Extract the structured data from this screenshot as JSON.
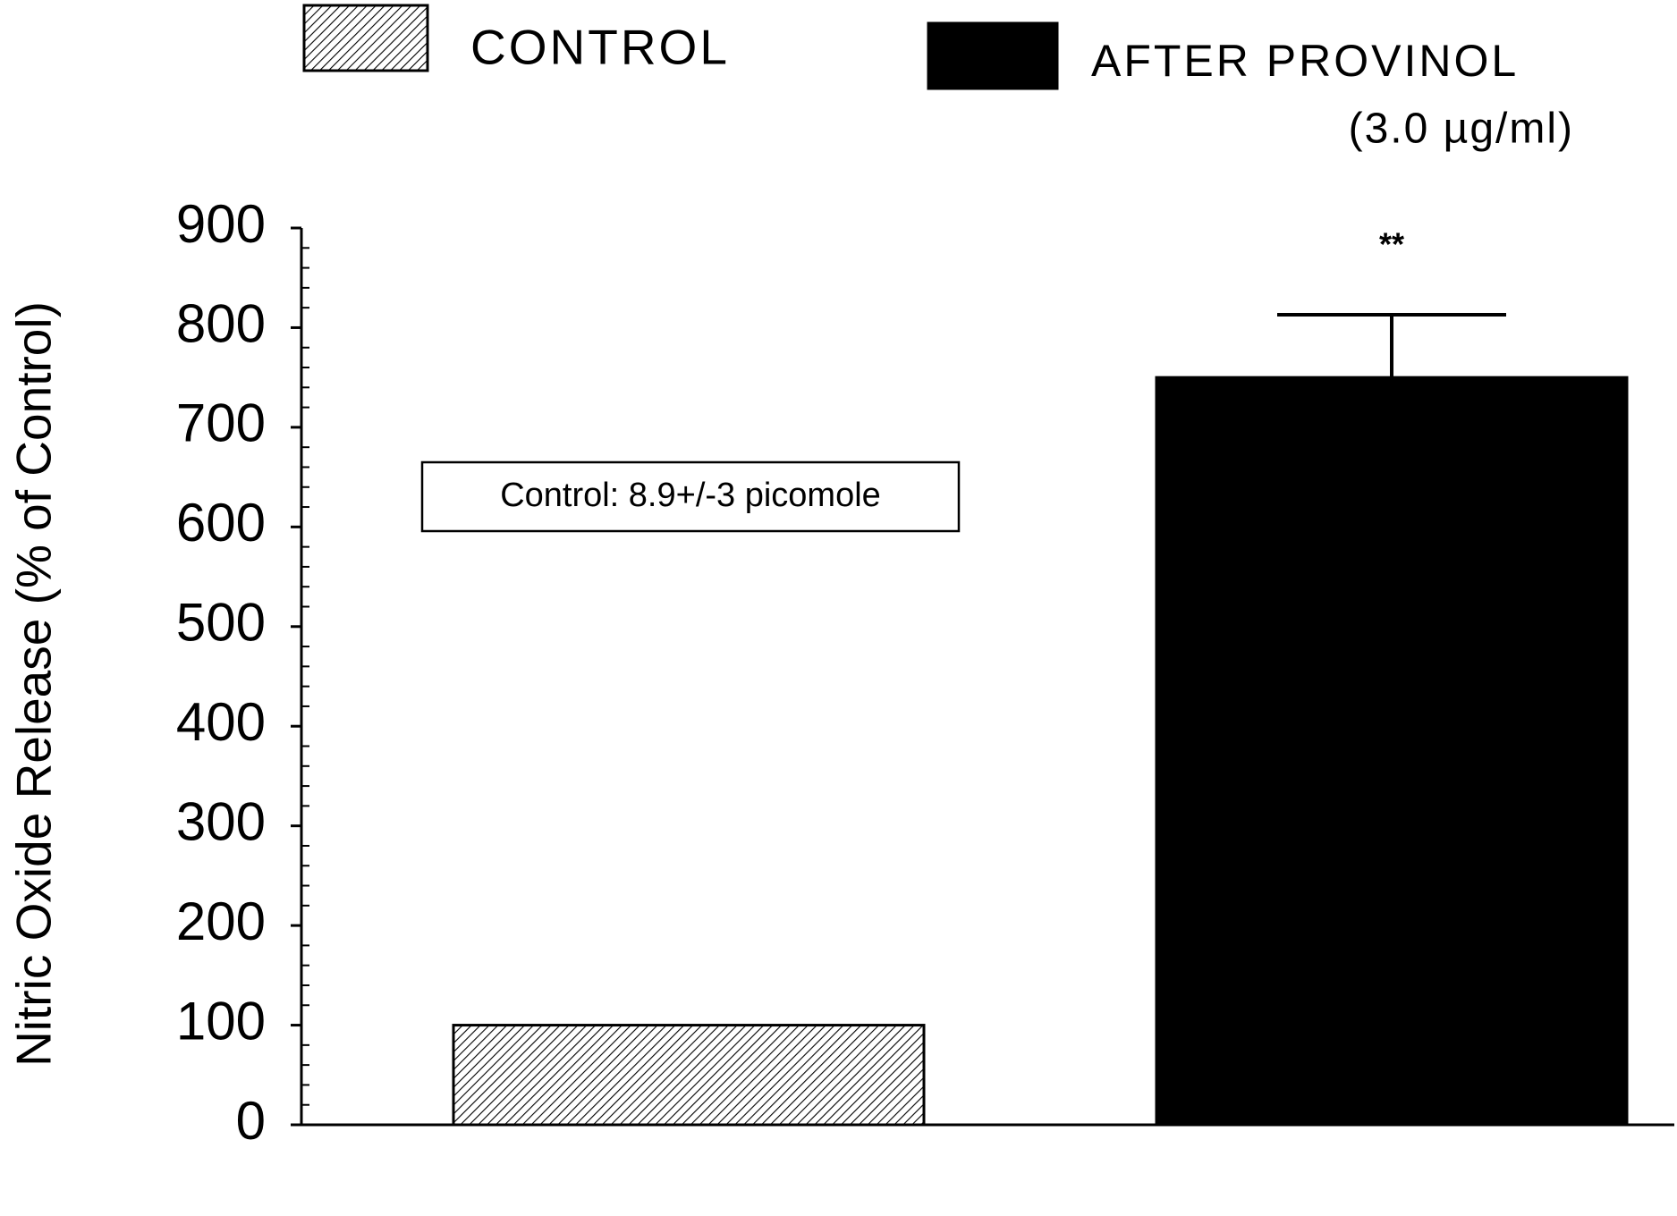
{
  "chart_data": {
    "type": "bar",
    "ylabel": "Nitric Oxide Release (% of Control)",
    "categories": [
      null,
      null
    ],
    "series": [
      {
        "name": "CONTROL",
        "color": "#000000",
        "hatch": true,
        "values": [
          100,
          null
        ]
      },
      {
        "name": "AFTER PROVINOL",
        "name_note": "(3.0 µg/ml)",
        "color": "#000000",
        "hatch": false,
        "values": [
          null,
          750
        ],
        "errors": [
          null,
          63
        ]
      }
    ],
    "ylim": [
      0,
      900
    ],
    "yticks": [
      0,
      100,
      200,
      300,
      400,
      500,
      600,
      700,
      800,
      900
    ],
    "yminorticks": [
      20,
      40,
      60,
      80,
      120,
      140,
      160,
      180,
      220,
      240,
      260,
      280,
      320,
      340,
      360,
      380,
      420,
      440,
      460,
      480,
      520,
      540,
      560,
      580,
      620,
      640,
      660,
      680,
      720,
      740,
      760,
      780,
      820,
      840,
      860,
      880
    ],
    "annotations": [
      {
        "text": "Control: 8.9+/-3 picomole"
      },
      {
        "text": "**"
      }
    ],
    "grid": false
  }
}
